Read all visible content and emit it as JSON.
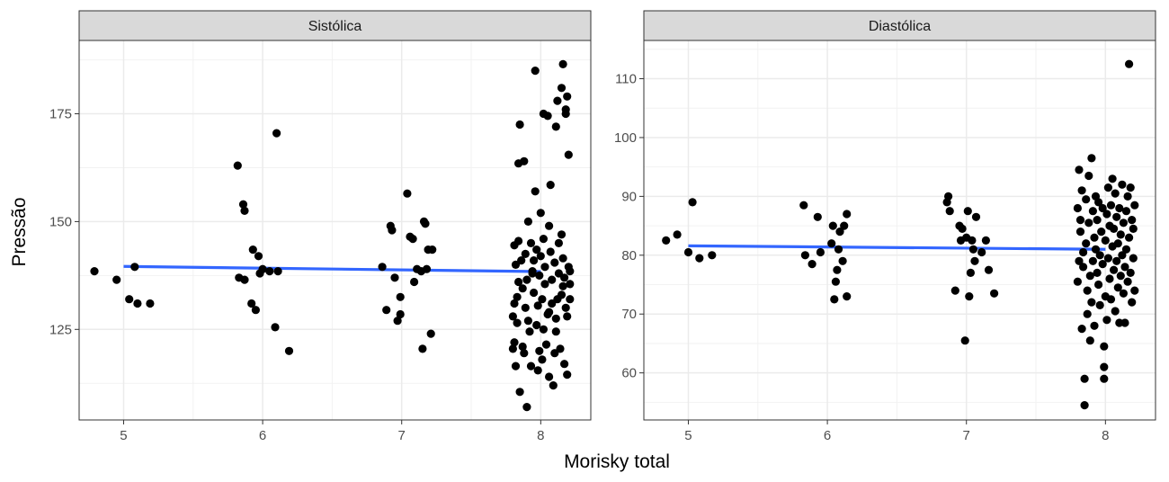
{
  "figure": {
    "xlabel": "Morisky total",
    "ylabel": "Pressão"
  },
  "chart_data": [
    {
      "type": "scatter",
      "title": "Sistólica",
      "xlabel": "Morisky total",
      "ylabel": "Pressão",
      "xlim": [
        4.68,
        8.36
      ],
      "ylim": [
        104,
        192
      ],
      "xticks": [
        5,
        6,
        7,
        8
      ],
      "yticks": [
        125,
        150,
        175
      ],
      "grid": true,
      "trend": {
        "x": [
          5,
          8
        ],
        "y": [
          139.6,
          138.4
        ],
        "color": "#3366ff"
      },
      "points": [
        [
          4.79,
          138.5
        ],
        [
          4.95,
          136.5
        ],
        [
          5.04,
          132.0
        ],
        [
          5.08,
          139.5
        ],
        [
          5.1,
          131.0
        ],
        [
          5.19,
          131.0
        ],
        [
          5.82,
          163.0
        ],
        [
          5.83,
          137.0
        ],
        [
          5.86,
          154.0
        ],
        [
          5.87,
          152.5
        ],
        [
          5.87,
          136.5
        ],
        [
          5.92,
          131.0
        ],
        [
          5.93,
          143.5
        ],
        [
          5.95,
          129.5
        ],
        [
          5.97,
          142.0
        ],
        [
          5.98,
          138.0
        ],
        [
          6.0,
          139.0
        ],
        [
          6.05,
          138.5
        ],
        [
          6.09,
          125.5
        ],
        [
          6.1,
          170.5
        ],
        [
          6.11,
          138.5
        ],
        [
          6.19,
          120.0
        ],
        [
          6.86,
          139.5
        ],
        [
          6.89,
          129.5
        ],
        [
          6.92,
          149.0
        ],
        [
          6.93,
          148.0
        ],
        [
          6.95,
          137.0
        ],
        [
          6.97,
          127.0
        ],
        [
          6.99,
          128.5
        ],
        [
          6.99,
          132.5
        ],
        [
          7.04,
          156.5
        ],
        [
          7.06,
          146.5
        ],
        [
          7.08,
          146.0
        ],
        [
          7.09,
          136.0
        ],
        [
          7.11,
          139.0
        ],
        [
          7.14,
          138.5
        ],
        [
          7.15,
          120.5
        ],
        [
          7.16,
          150.0
        ],
        [
          7.17,
          149.5
        ],
        [
          7.18,
          139.0
        ],
        [
          7.19,
          143.5
        ],
        [
          7.21,
          124.0
        ],
        [
          7.22,
          143.5
        ],
        [
          7.8,
          128.0
        ],
        [
          7.8,
          120.5
        ],
        [
          7.81,
          122.0
        ],
        [
          7.81,
          131.0
        ],
        [
          7.81,
          144.5
        ],
        [
          7.82,
          140.0
        ],
        [
          7.82,
          116.5
        ],
        [
          7.83,
          132.5
        ],
        [
          7.83,
          126.5
        ],
        [
          7.84,
          163.5
        ],
        [
          7.84,
          145.5
        ],
        [
          7.84,
          136.0
        ],
        [
          7.85,
          110.5
        ],
        [
          7.85,
          172.5
        ],
        [
          7.86,
          141.0
        ],
        [
          7.87,
          121.0
        ],
        [
          7.87,
          134.5
        ],
        [
          7.88,
          164.0
        ],
        [
          7.88,
          119.5
        ],
        [
          7.89,
          130.0
        ],
        [
          7.89,
          142.5
        ],
        [
          7.9,
          136.5
        ],
        [
          7.9,
          107.0
        ],
        [
          7.91,
          127.0
        ],
        [
          7.91,
          150.0
        ],
        [
          7.92,
          124.5
        ],
        [
          7.93,
          145.0
        ],
        [
          7.93,
          116.5
        ],
        [
          7.94,
          138.0
        ],
        [
          7.94,
          138.5
        ],
        [
          7.95,
          133.5
        ],
        [
          7.95,
          141.0
        ],
        [
          7.96,
          157.0
        ],
        [
          7.96,
          185.0
        ],
        [
          7.97,
          143.5
        ],
        [
          7.97,
          126.0
        ],
        [
          7.98,
          115.5
        ],
        [
          7.98,
          130.5
        ],
        [
          7.99,
          137.5
        ],
        [
          7.99,
          120.0
        ],
        [
          8.0,
          152.0
        ],
        [
          8.0,
          142.0
        ],
        [
          8.01,
          118.0
        ],
        [
          8.01,
          132.0
        ],
        [
          8.02,
          146.0
        ],
        [
          8.02,
          175.0
        ],
        [
          8.02,
          125.0
        ],
        [
          8.03,
          135.5
        ],
        [
          8.03,
          139.5
        ],
        [
          8.04,
          121.5
        ],
        [
          8.05,
          128.5
        ],
        [
          8.05,
          174.5
        ],
        [
          8.06,
          149.0
        ],
        [
          8.06,
          129.0
        ],
        [
          8.06,
          114.0
        ],
        [
          8.07,
          143.0
        ],
        [
          8.07,
          158.5
        ],
        [
          8.08,
          131.0
        ],
        [
          8.08,
          136.5
        ],
        [
          8.09,
          112.0
        ],
        [
          8.1,
          119.5
        ],
        [
          8.1,
          140.5
        ],
        [
          8.11,
          172.0
        ],
        [
          8.11,
          124.5
        ],
        [
          8.11,
          127.5
        ],
        [
          8.12,
          178.0
        ],
        [
          8.12,
          132.0
        ],
        [
          8.13,
          145.0
        ],
        [
          8.13,
          138.0
        ],
        [
          8.14,
          120.5
        ],
        [
          8.15,
          147.0
        ],
        [
          8.15,
          133.0
        ],
        [
          8.15,
          181.0
        ],
        [
          8.16,
          186.5
        ],
        [
          8.16,
          135.0
        ],
        [
          8.16,
          141.5
        ],
        [
          8.17,
          117.0
        ],
        [
          8.17,
          137.0
        ],
        [
          8.18,
          176.0
        ],
        [
          8.18,
          175.0
        ],
        [
          8.18,
          130.0
        ],
        [
          8.19,
          128.0
        ],
        [
          8.19,
          179.0
        ],
        [
          8.19,
          114.5
        ],
        [
          8.2,
          139.5
        ],
        [
          8.2,
          165.5
        ],
        [
          8.21,
          132.0
        ],
        [
          8.21,
          138.5
        ],
        [
          8.21,
          135.5
        ]
      ]
    },
    {
      "type": "scatter",
      "title": "Diastólica",
      "xlabel": "Morisky total",
      "ylabel": "Pressão",
      "xlim": [
        4.68,
        8.36
      ],
      "ylim": [
        52,
        116.5
      ],
      "xticks": [
        5,
        6,
        7,
        8
      ],
      "yticks": [
        60,
        70,
        80,
        90,
        100,
        110
      ],
      "grid": true,
      "trend": {
        "x": [
          5,
          8
        ],
        "y": [
          81.6,
          81.0
        ],
        "color": "#3366ff"
      },
      "points": [
        [
          4.84,
          82.5
        ],
        [
          4.92,
          83.5
        ],
        [
          5.0,
          80.5
        ],
        [
          5.03,
          89.0
        ],
        [
          5.08,
          79.5
        ],
        [
          5.17,
          80.0
        ],
        [
          5.83,
          88.5
        ],
        [
          5.84,
          80.0
        ],
        [
          5.89,
          78.5
        ],
        [
          5.93,
          86.5
        ],
        [
          5.95,
          80.5
        ],
        [
          6.03,
          82.0
        ],
        [
          6.04,
          85.0
        ],
        [
          6.05,
          72.5
        ],
        [
          6.06,
          75.5
        ],
        [
          6.07,
          77.5
        ],
        [
          6.08,
          81.0
        ],
        [
          6.09,
          84.0
        ],
        [
          6.11,
          79.0
        ],
        [
          6.12,
          85.0
        ],
        [
          6.14,
          73.0
        ],
        [
          6.14,
          87.0
        ],
        [
          6.86,
          89.0
        ],
        [
          6.87,
          90.0
        ],
        [
          6.88,
          87.5
        ],
        [
          6.92,
          74.0
        ],
        [
          6.95,
          85.0
        ],
        [
          6.96,
          82.5
        ],
        [
          6.97,
          84.5
        ],
        [
          6.99,
          65.5
        ],
        [
          7.0,
          83.0
        ],
        [
          7.01,
          87.5
        ],
        [
          7.02,
          73.0
        ],
        [
          7.03,
          77.0
        ],
        [
          7.04,
          82.5
        ],
        [
          7.05,
          81.0
        ],
        [
          7.06,
          79.0
        ],
        [
          7.07,
          86.5
        ],
        [
          7.11,
          80.5
        ],
        [
          7.14,
          82.5
        ],
        [
          7.16,
          77.5
        ],
        [
          7.2,
          73.5
        ],
        [
          7.8,
          88.0
        ],
        [
          7.8,
          75.5
        ],
        [
          7.81,
          94.5
        ],
        [
          7.81,
          79.0
        ],
        [
          7.82,
          84.0
        ],
        [
          7.82,
          86.0
        ],
        [
          7.83,
          67.5
        ],
        [
          7.83,
          91.0
        ],
        [
          7.84,
          78.0
        ],
        [
          7.84,
          80.5
        ],
        [
          7.85,
          54.5
        ],
        [
          7.85,
          59.0
        ],
        [
          7.86,
          82.0
        ],
        [
          7.86,
          89.5
        ],
        [
          7.87,
          70.0
        ],
        [
          7.87,
          74.0
        ],
        [
          7.88,
          93.5
        ],
        [
          7.88,
          85.5
        ],
        [
          7.89,
          65.5
        ],
        [
          7.89,
          76.5
        ],
        [
          7.9,
          96.5
        ],
        [
          7.9,
          72.0
        ],
        [
          7.91,
          87.5
        ],
        [
          7.91,
          79.0
        ],
        [
          7.92,
          83.0
        ],
        [
          7.92,
          68.0
        ],
        [
          7.93,
          90.0
        ],
        [
          7.93,
          81.0
        ],
        [
          7.94,
          77.0
        ],
        [
          7.94,
          86.0
        ],
        [
          7.95,
          75.0
        ],
        [
          7.95,
          89.0
        ],
        [
          7.96,
          80.0
        ],
        [
          7.96,
          71.5
        ],
        [
          7.97,
          84.0
        ],
        [
          7.98,
          78.5
        ],
        [
          7.98,
          88.0
        ],
        [
          7.99,
          64.5
        ],
        [
          7.99,
          59.0
        ],
        [
          7.99,
          61.0
        ],
        [
          8.0,
          82.5
        ],
        [
          8.0,
          73.0
        ],
        [
          8.01,
          87.0
        ],
        [
          8.01,
          69.0
        ],
        [
          8.02,
          91.5
        ],
        [
          8.02,
          79.5
        ],
        [
          8.03,
          85.0
        ],
        [
          8.03,
          76.0
        ],
        [
          8.04,
          88.5
        ],
        [
          8.04,
          72.5
        ],
        [
          8.05,
          81.5
        ],
        [
          8.05,
          93.0
        ],
        [
          8.06,
          77.5
        ],
        [
          8.06,
          84.5
        ],
        [
          8.07,
          70.5
        ],
        [
          8.07,
          90.5
        ],
        [
          8.08,
          79.0
        ],
        [
          8.08,
          86.5
        ],
        [
          8.09,
          74.5
        ],
        [
          8.09,
          82.0
        ],
        [
          8.1,
          68.5
        ],
        [
          8.1,
          88.0
        ],
        [
          8.11,
          76.5
        ],
        [
          8.11,
          83.5
        ],
        [
          8.12,
          80.0
        ],
        [
          8.12,
          92.0
        ],
        [
          8.13,
          73.5
        ],
        [
          8.13,
          85.5
        ],
        [
          8.14,
          78.0
        ],
        [
          8.14,
          68.5
        ],
        [
          8.15,
          87.5
        ],
        [
          8.15,
          81.0
        ],
        [
          8.16,
          75.5
        ],
        [
          8.16,
          90.0
        ],
        [
          8.17,
          112.5
        ],
        [
          8.17,
          83.0
        ],
        [
          8.18,
          77.0
        ],
        [
          8.18,
          91.5
        ],
        [
          8.19,
          72.0
        ],
        [
          8.19,
          86.0
        ],
        [
          8.2,
          79.5
        ],
        [
          8.2,
          84.5
        ],
        [
          8.21,
          74.0
        ],
        [
          8.21,
          88.5
        ]
      ]
    }
  ]
}
